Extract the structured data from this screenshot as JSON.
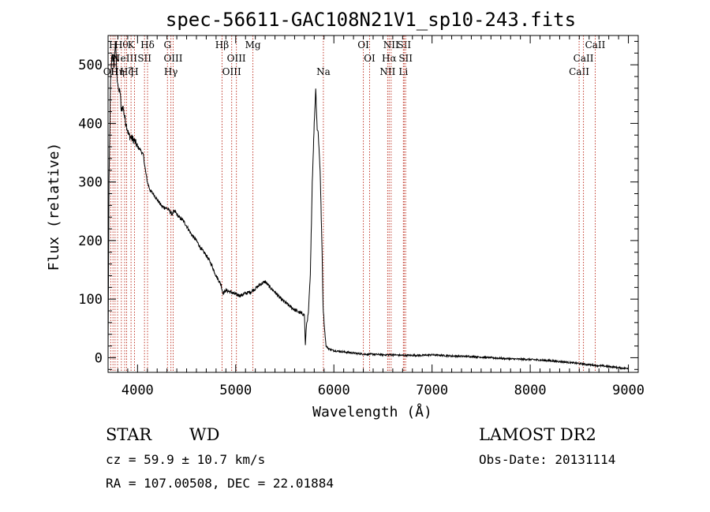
{
  "chart_data": {
    "type": "line",
    "title": "spec-56611-GAC108N21V1_sp10-243.fits",
    "xlabel": "Wavelength (Å)",
    "ylabel": "Flux (relative)",
    "xlim": [
      3700,
      9100
    ],
    "ylim": [
      -25,
      550
    ],
    "xticks": [
      4000,
      5000,
      6000,
      7000,
      8000,
      9000
    ],
    "yticks": [
      0,
      100,
      200,
      300,
      400,
      500
    ],
    "grid": false,
    "series": [
      {
        "x": [
          3700,
          3710,
          3725,
          3740,
          3760,
          3775,
          3790,
          3800,
          3810,
          3820,
          3835,
          3850,
          3870,
          3890,
          3910,
          3940,
          3970,
          4000,
          4030,
          4060,
          4080,
          4100,
          4130,
          4160,
          4200,
          4250,
          4300,
          4330,
          4350,
          4380,
          4420,
          4460,
          4500,
          4550,
          4600,
          4650,
          4700,
          4750,
          4800,
          4850,
          4870,
          4900,
          4950,
          5000,
          5050,
          5100,
          5150,
          5200,
          5250,
          5300,
          5350,
          5400,
          5450,
          5500,
          5550,
          5600,
          5650,
          5680,
          5700,
          5710,
          5720,
          5740,
          5760,
          5780,
          5800,
          5815,
          5830,
          5840,
          5860,
          5880,
          5890,
          5900,
          5920,
          5950,
          6000,
          6100,
          6200,
          6300,
          6400,
          6500,
          6600,
          6700,
          6800,
          6900,
          7000,
          7200,
          7400,
          7600,
          7800,
          8000,
          8200,
          8400,
          8600,
          8800,
          8950,
          9000
        ],
        "y": [
          10,
          300,
          470,
          520,
          500,
          540,
          480,
          470,
          450,
          460,
          420,
          430,
          410,
          395,
          380,
          375,
          370,
          360,
          355,
          345,
          320,
          300,
          285,
          280,
          270,
          258,
          255,
          250,
          245,
          250,
          240,
          235,
          225,
          210,
          200,
          185,
          175,
          160,
          140,
          125,
          110,
          115,
          112,
          108,
          106,
          110,
          112,
          118,
          125,
          130,
          120,
          112,
          102,
          95,
          88,
          82,
          77,
          75,
          73,
          20,
          55,
          75,
          140,
          300,
          400,
          460,
          390,
          385,
          320,
          180,
          90,
          60,
          20,
          15,
          12,
          10,
          8,
          6,
          6,
          5,
          5,
          4,
          4,
          4,
          5,
          3,
          2,
          0,
          -2,
          -3,
          -5,
          -8,
          -12,
          -15,
          -18,
          -18
        ]
      }
    ],
    "line_markers": [
      {
        "w": 3727,
        "label": "OII",
        "tier": 2
      },
      {
        "w": 3750,
        "label": "H",
        "tier": 0
      },
      {
        "w": 3771,
        "label": "H",
        "tier": 1
      },
      {
        "w": 3797,
        "label": "Hη",
        "tier": 2
      },
      {
        "w": 3835,
        "label": "Hθ",
        "tier": 0
      },
      {
        "w": 3869,
        "label": "NeIII",
        "tier": 1
      },
      {
        "w": 3889,
        "label": "Hζ",
        "tier": 2
      },
      {
        "w": 3934,
        "label": "K",
        "tier": 0
      },
      {
        "w": 3969,
        "label": "H",
        "tier": 2
      },
      {
        "w": 4071,
        "label": "SII",
        "tier": 1
      },
      {
        "w": 4102,
        "label": "Hδ",
        "tier": 0
      },
      {
        "w": 4305,
        "label": "G",
        "tier": 0
      },
      {
        "w": 4340,
        "label": "Hγ",
        "tier": 2
      },
      {
        "w": 4363,
        "label": "OIII",
        "tier": 1
      },
      {
        "w": 4861,
        "label": "Hβ",
        "tier": 0
      },
      {
        "w": 4959,
        "label": "OIII",
        "tier": 2
      },
      {
        "w": 5007,
        "label": "OIII",
        "tier": 1
      },
      {
        "w": 5175,
        "label": "Mg",
        "tier": 0
      },
      {
        "w": 5893,
        "label": "Na",
        "tier": 2
      },
      {
        "w": 6300,
        "label": "OI",
        "tier": 0
      },
      {
        "w": 6364,
        "label": "OI",
        "tier": 1
      },
      {
        "w": 6548,
        "label": "NII",
        "tier": 2
      },
      {
        "w": 6563,
        "label": "Hα",
        "tier": 1
      },
      {
        "w": 6583,
        "label": "NII",
        "tier": 0
      },
      {
        "w": 6708,
        "label": "Li",
        "tier": 2
      },
      {
        "w": 6716,
        "label": "SII",
        "tier": 0
      },
      {
        "w": 6731,
        "label": "SII",
        "tier": 1
      },
      {
        "w": 8498,
        "label": "CaII",
        "tier": 2
      },
      {
        "w": 8542,
        "label": "CaII",
        "tier": 1
      },
      {
        "w": 8662,
        "label": "CaII",
        "tier": 0
      }
    ]
  },
  "info": {
    "class": "STAR",
    "subclass": "WD",
    "survey": "LAMOST DR2",
    "cz": "cz = 59.9 ± 10.7 km/s",
    "obs_date": "Obs-Date: 20131114",
    "radec": "RA = 107.00508, DEC =  22.01884"
  }
}
